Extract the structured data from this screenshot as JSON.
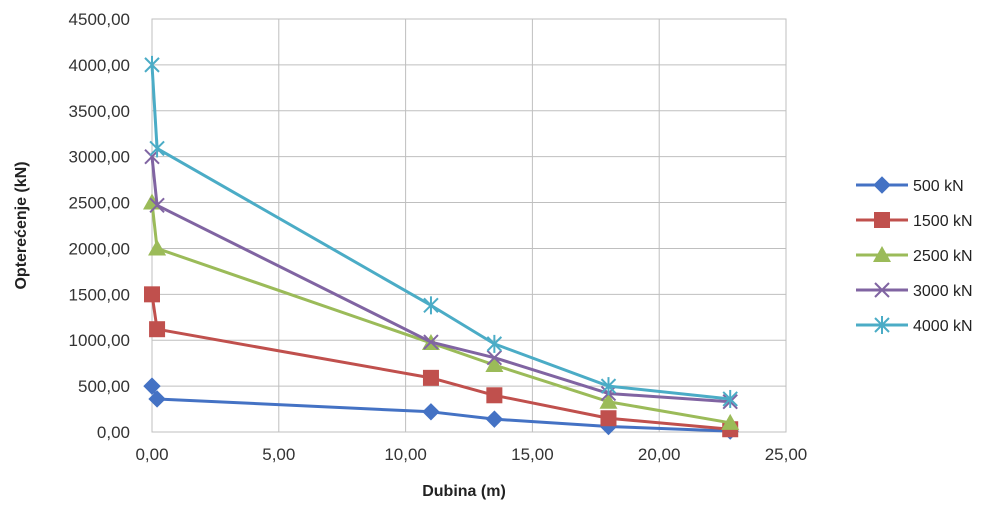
{
  "chart_data": {
    "type": "line",
    "xlabel": "Dubina (m)",
    "ylabel": "Opterećenje (kN)",
    "xlim": [
      0,
      25
    ],
    "ylim": [
      0,
      4500
    ],
    "xticks": [
      0,
      5,
      10,
      15,
      20,
      25
    ],
    "yticks": [
      0,
      500,
      1000,
      1500,
      2000,
      2500,
      3000,
      3500,
      4000,
      4500
    ],
    "xtick_labels": [
      "0,00",
      "5,00",
      "10,00",
      "15,00",
      "20,00",
      "25,00"
    ],
    "ytick_labels": [
      "0,00",
      "500,00",
      "1000,00",
      "1500,00",
      "2000,00",
      "2500,00",
      "3000,00",
      "3500,00",
      "4000,00",
      "4500,00"
    ],
    "grid": true,
    "legend_position": "right",
    "series": [
      {
        "name": "500 kN",
        "color": "#4472C4",
        "marker": "diamond",
        "points": [
          [
            0,
            500
          ],
          [
            0.2,
            360
          ],
          [
            11,
            220
          ],
          [
            13.5,
            140
          ],
          [
            18,
            60
          ],
          [
            22.8,
            10
          ]
        ]
      },
      {
        "name": "1500 kN",
        "color": "#C0504D",
        "marker": "square",
        "points": [
          [
            0,
            1500
          ],
          [
            0.2,
            1120
          ],
          [
            11,
            590
          ],
          [
            13.5,
            400
          ],
          [
            18,
            150
          ],
          [
            22.8,
            30
          ]
        ]
      },
      {
        "name": "2500 kN",
        "color": "#9BBB59",
        "marker": "triangle",
        "points": [
          [
            0,
            2500
          ],
          [
            0.2,
            2000
          ],
          [
            11,
            970
          ],
          [
            13.5,
            730
          ],
          [
            18,
            330
          ],
          [
            22.8,
            100
          ]
        ]
      },
      {
        "name": "3000 kN",
        "color": "#8064A2",
        "marker": "x",
        "points": [
          [
            0,
            3000
          ],
          [
            0.2,
            2470
          ],
          [
            11,
            980
          ],
          [
            13.5,
            810
          ],
          [
            18,
            420
          ],
          [
            22.8,
            330
          ]
        ]
      },
      {
        "name": "4000 kN",
        "color": "#4BACC6",
        "marker": "star",
        "points": [
          [
            0,
            4000
          ],
          [
            0.2,
            3090
          ],
          [
            11,
            1380
          ],
          [
            13.5,
            960
          ],
          [
            18,
            500
          ],
          [
            22.8,
            360
          ]
        ]
      }
    ]
  }
}
